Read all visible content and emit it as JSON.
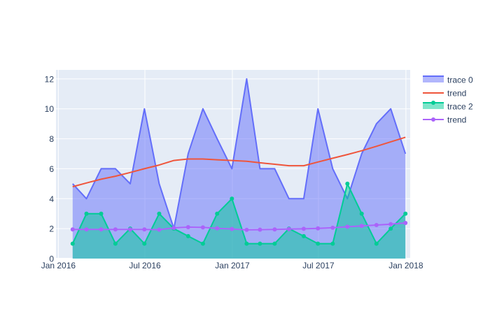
{
  "chart_data": {
    "type": "area",
    "title": "",
    "xlabel": "",
    "ylabel": "",
    "x_ticks": [
      "Jan 2016",
      "Jul 2016",
      "Jan 2017",
      "Jul 2017",
      "Jan 2018"
    ],
    "x_range": [
      "2015-12-27",
      "2018-01-10"
    ],
    "y_ticks": [
      0,
      2,
      4,
      6,
      8,
      10,
      12
    ],
    "ylim": [
      0,
      12.6
    ],
    "grid": true,
    "legend_position": "right",
    "dates": [
      "2016-01-31",
      "2016-02-29",
      "2016-03-31",
      "2016-04-30",
      "2016-05-31",
      "2016-06-30",
      "2016-07-31",
      "2016-08-31",
      "2016-09-30",
      "2016-10-31",
      "2016-11-30",
      "2016-12-31",
      "2017-01-31",
      "2017-02-28",
      "2017-03-31",
      "2017-04-30",
      "2017-05-31",
      "2017-06-30",
      "2017-07-31",
      "2017-08-31",
      "2017-09-30",
      "2017-10-31",
      "2017-11-30",
      "2017-12-31"
    ],
    "series": [
      {
        "name": "trace 0",
        "kind": "area",
        "color": "#636efa",
        "fill_color": "rgba(99,110,250,0.5)",
        "values": [
          5,
          4,
          6,
          6,
          5,
          10,
          5,
          2,
          7,
          10,
          8,
          6,
          12,
          6,
          6,
          4,
          4,
          10,
          6,
          4,
          7,
          9,
          10,
          7
        ]
      },
      {
        "name": "trend",
        "kind": "line",
        "color": "#ef553b",
        "values": [
          4.8,
          5.05,
          5.3,
          5.5,
          5.75,
          6.0,
          6.25,
          6.55,
          6.65,
          6.65,
          6.6,
          6.55,
          6.5,
          6.4,
          6.3,
          6.2,
          6.2,
          6.45,
          6.7,
          6.95,
          7.2,
          7.5,
          7.8,
          8.1
        ]
      },
      {
        "name": "trace 2",
        "kind": "area-markers",
        "color": "#00cc96",
        "fill_color": "rgba(0,204,150,0.5)",
        "values": [
          1,
          3,
          3,
          1,
          2,
          1,
          3,
          2,
          1.5,
          1,
          3,
          4,
          1,
          1,
          1,
          2,
          1.5,
          1,
          1,
          5,
          3,
          1,
          2,
          3
        ]
      },
      {
        "name": "trend",
        "kind": "line-markers",
        "color": "#ab63fa",
        "values": [
          1.95,
          1.95,
          1.95,
          1.95,
          1.95,
          1.95,
          1.93,
          2.05,
          2.1,
          2.08,
          2.02,
          1.98,
          1.92,
          1.93,
          1.95,
          1.97,
          1.99,
          2.02,
          2.06,
          2.13,
          2.18,
          2.24,
          2.3,
          2.38
        ]
      }
    ]
  }
}
